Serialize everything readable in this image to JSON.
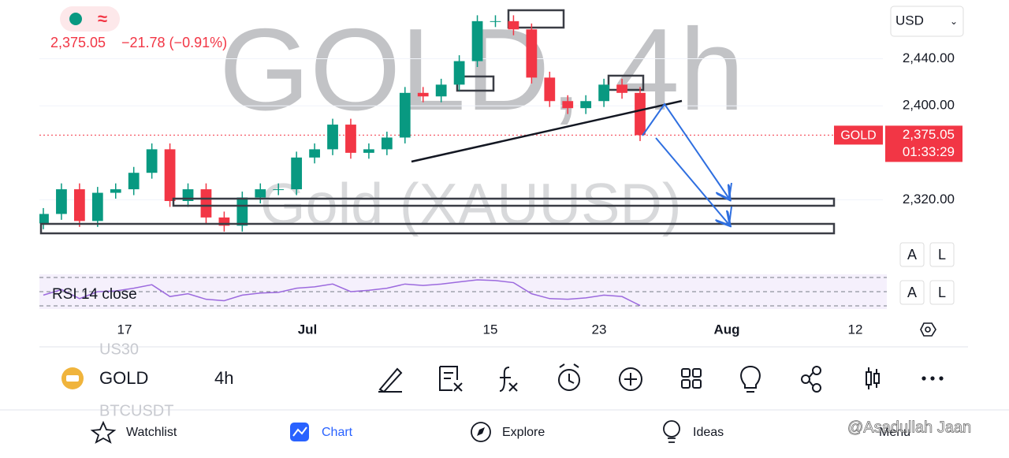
{
  "header": {
    "price": "2,375.05",
    "change": "−21.78 (−0.91%)"
  },
  "currency": "USD",
  "chart_data": {
    "type": "candlestick",
    "watermark_title": "GOLD, 4h",
    "watermark_subtitle": "Gold (XAUUSD)",
    "categories": [
      null,
      null,
      null,
      null,
      null,
      null,
      null,
      null,
      null,
      null,
      null,
      null,
      null,
      null,
      null,
      null,
      null,
      null,
      null,
      null,
      null,
      null,
      null,
      null,
      null,
      null,
      null,
      null,
      null,
      null,
      null,
      null,
      null,
      null
    ],
    "open": [
      2300,
      2308,
      2329,
      2302,
      2326,
      2329,
      2343,
      2363,
      2319,
      2329,
      2305,
      2298,
      2322,
      2329,
      2329,
      2356,
      2363,
      2384,
      2360,
      2363,
      2373,
      2411,
      2408,
      2418,
      2438,
      2472,
      2472,
      2465,
      2424,
      2404,
      2398,
      2404,
      2418,
      2411
    ],
    "high": [
      2313,
      2334,
      2334,
      2331,
      2334,
      2348,
      2368,
      2368,
      2334,
      2334,
      2310,
      2327,
      2334,
      2334,
      2361,
      2368,
      2389,
      2389,
      2368,
      2378,
      2416,
      2416,
      2423,
      2443,
      2477,
      2477,
      2477,
      2470,
      2429,
      2409,
      2409,
      2423,
      2423,
      2416
    ],
    "low": [
      2295,
      2303,
      2297,
      2297,
      2321,
      2324,
      2338,
      2314,
      2314,
      2300,
      2293,
      2293,
      2317,
      2324,
      2324,
      2351,
      2358,
      2355,
      2355,
      2358,
      2368,
      2403,
      2403,
      2413,
      2433,
      2467,
      2460,
      2419,
      2399,
      2393,
      2393,
      2399,
      2406,
      2370
    ],
    "close": [
      2308,
      2329,
      2302,
      2326,
      2329,
      2343,
      2363,
      2319,
      2329,
      2305,
      2298,
      2322,
      2329,
      2329,
      2356,
      2363,
      2384,
      2360,
      2363,
      2373,
      2411,
      2408,
      2418,
      2438,
      2472,
      2472,
      2465,
      2424,
      2404,
      2398,
      2404,
      2418,
      2411,
      2375.05
    ],
    "up_color": "#089981",
    "down_color": "#f23645",
    "ylim": [
      2262,
      2490
    ],
    "yticks": [
      {
        "value": 2440,
        "label": "2,440.00"
      },
      {
        "value": 2400,
        "label": "2,400.00"
      },
      {
        "value": 2320,
        "label": "2,320.00"
      }
    ],
    "grid": true,
    "price_line": {
      "value": 2375.05,
      "label": "2,375.05",
      "name": "GOLD",
      "countdown": "01:33:29",
      "color": "#f23645"
    },
    "x_labels": [
      "17",
      "Jul",
      "15",
      "23",
      "Aug",
      "12"
    ],
    "rsi": {
      "label": "RSI 14 close",
      "color": "#9c6ade",
      "ylim": [
        30,
        80
      ],
      "values": [
        50,
        58,
        45,
        55,
        56,
        60,
        65,
        48,
        52,
        44,
        42,
        50,
        53,
        54,
        60,
        62,
        66,
        55,
        57,
        60,
        66,
        64,
        66,
        69,
        72,
        71,
        68,
        52,
        45,
        44,
        46,
        50,
        48,
        35
      ]
    }
  },
  "scale_buttons": [
    "A",
    "L",
    "A",
    "L"
  ],
  "toolbar": {
    "symbol": "GOLD",
    "interval": "4h",
    "above": "US30",
    "below": "BTCUSDT"
  },
  "nav": [
    "Watchlist",
    "Chart",
    "Explore",
    "Ideas",
    "Menu"
  ],
  "watermark": "@Asadullah Jaan"
}
